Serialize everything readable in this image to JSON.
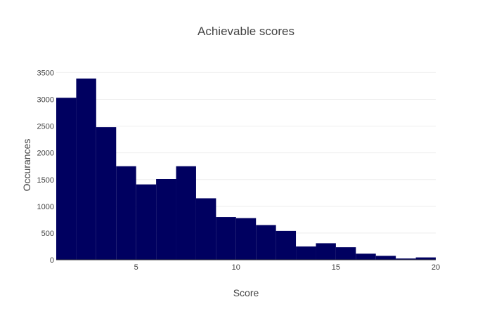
{
  "chart_data": {
    "type": "bar",
    "title": "Achievable scores",
    "xlabel": "Score",
    "ylabel": "Occurances",
    "xlim": [
      1,
      20
    ],
    "ylim": [
      0,
      3650
    ],
    "x_ticks": [
      5,
      10,
      15,
      20
    ],
    "y_ticks": [
      0,
      500,
      1000,
      1500,
      2000,
      2500,
      3000,
      3500
    ],
    "grid": true,
    "legend": "none",
    "bar_color": "#000060",
    "bins": [
      {
        "start": 1,
        "end": 2,
        "value": 3030
      },
      {
        "start": 2,
        "end": 3,
        "value": 3390
      },
      {
        "start": 3,
        "end": 4,
        "value": 2480
      },
      {
        "start": 4,
        "end": 5,
        "value": 1750
      },
      {
        "start": 5,
        "end": 6,
        "value": 1410
      },
      {
        "start": 6,
        "end": 7,
        "value": 1510
      },
      {
        "start": 7,
        "end": 8,
        "value": 1750
      },
      {
        "start": 8,
        "end": 9,
        "value": 1150
      },
      {
        "start": 9,
        "end": 10,
        "value": 800
      },
      {
        "start": 10,
        "end": 11,
        "value": 780
      },
      {
        "start": 11,
        "end": 12,
        "value": 650
      },
      {
        "start": 12,
        "end": 13,
        "value": 540
      },
      {
        "start": 13,
        "end": 14,
        "value": 250
      },
      {
        "start": 14,
        "end": 15,
        "value": 310
      },
      {
        "start": 15,
        "end": 16,
        "value": 235
      },
      {
        "start": 16,
        "end": 17,
        "value": 115
      },
      {
        "start": 17,
        "end": 18,
        "value": 75
      },
      {
        "start": 18,
        "end": 19,
        "value": 25
      },
      {
        "start": 19,
        "end": 20,
        "value": 45
      }
    ]
  }
}
